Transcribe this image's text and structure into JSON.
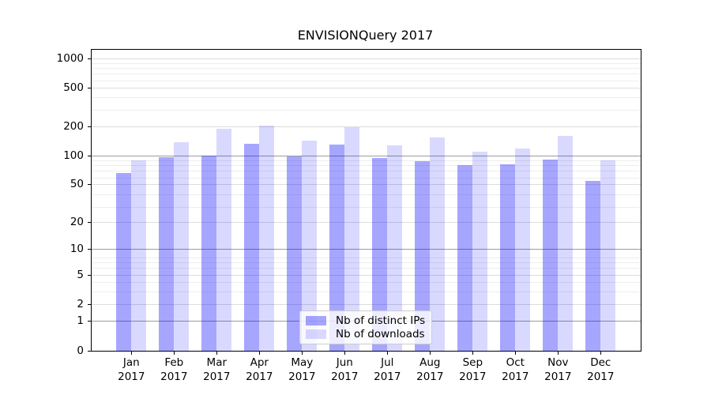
{
  "chart_data": {
    "type": "bar",
    "title": "ENVISIONQuery 2017",
    "categories": [
      "Jan",
      "Feb",
      "Mar",
      "Apr",
      "May",
      "Jun",
      "Jul",
      "Aug",
      "Sep",
      "Oct",
      "Nov",
      "Dec"
    ],
    "year_label": "2017",
    "series": [
      {
        "name": "Nb of distinct IPs",
        "color": "rgba(0,0,255,0.35)",
        "values": [
          66,
          97,
          100,
          134,
          98,
          130,
          95,
          88,
          80,
          82,
          91,
          55
        ]
      },
      {
        "name": "Nb of downloads",
        "color": "rgba(0,0,255,0.15)",
        "values": [
          90,
          138,
          190,
          205,
          145,
          199,
          128,
          155,
          111,
          120,
          162,
          90
        ]
      }
    ],
    "y_axis": {
      "scale": "log10(value+1)",
      "ticks": [
        0,
        1,
        2,
        5,
        10,
        20,
        50,
        100,
        200,
        500,
        1000
      ],
      "major_gridlines": [
        1,
        10,
        100
      ],
      "light_gridlines": [
        2,
        5,
        20,
        50,
        200,
        500,
        1000
      ],
      "minor_gridlines": [
        3,
        4,
        6,
        7,
        8,
        29,
        39,
        59,
        69,
        79,
        89,
        299,
        399,
        599,
        699,
        799,
        899
      ],
      "ylim_top": 1244
    },
    "xlabel": "",
    "ylabel": "",
    "grid": true,
    "legend_position": "lower-center"
  }
}
